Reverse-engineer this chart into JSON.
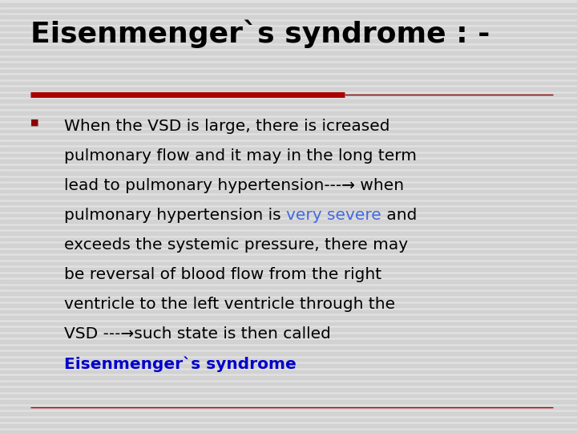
{
  "background_color": "#e0e0e0",
  "title": "Eisenmenger`s syndrome : -",
  "title_color": "#000000",
  "title_fontsize": 26,
  "red_line_color": "#aa0000",
  "bullet_color": "#8b0000",
  "body_fontsize": 14.5,
  "line4_colored_color": "#4169e1",
  "line9_color": "#0000cc",
  "bottom_line_color": "#aa0000",
  "line1": "When the VSD is large, there is icreased",
  "line2": "pulmonary flow and it may in the long term",
  "line3": "lead to pulmonary hypertension---→ when",
  "line4_part1": "pulmonary hypertension is ",
  "line4_colored": "very severe",
  "line4_part2": " and",
  "line5": "exceeds the systemic pressure, there may",
  "line6": "be reversal of blood flow from the right",
  "line7": "ventricle to the left ventricle through the",
  "line8": "VSD ---→such state is then called",
  "line9": "Eisenmenger`s syndrome",
  "stripe_color": "#d0d0d0",
  "stripe_alpha": 0.8
}
